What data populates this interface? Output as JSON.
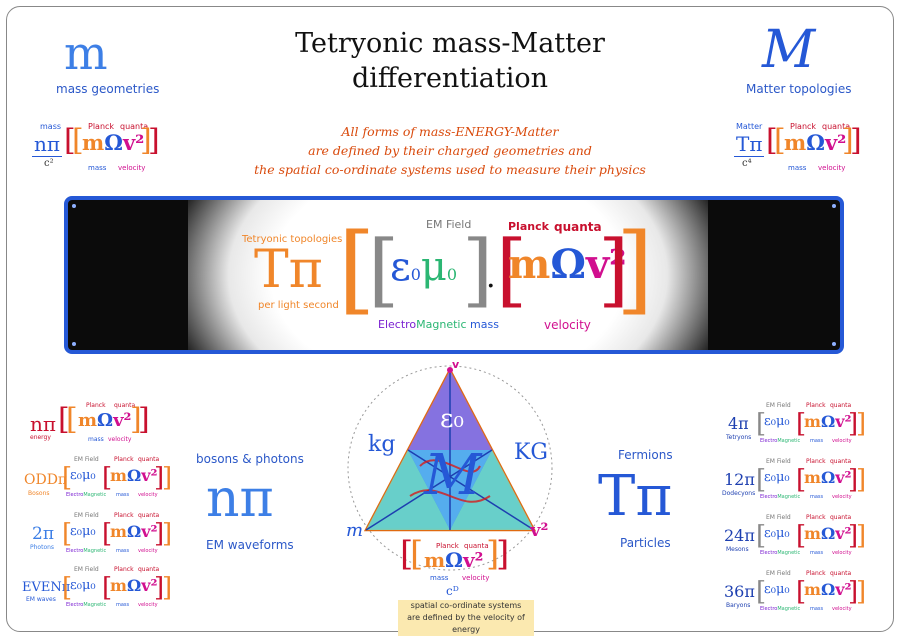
{
  "title_line1": "Tetryonic mass-Matter",
  "title_line2": "differentiation",
  "subtitle": {
    "line1": "All forms of mass-ENERGY-Matter",
    "line2": "are defined by their charged geometries and",
    "line3": "the spatial co-ordinate systems used to measure their physics"
  },
  "left_header": {
    "symbol": "m",
    "label": "mass geometries",
    "formula_top": "mass",
    "formula_num": "nπ",
    "formula_den": "c²",
    "planck": "Planck",
    "quanta": "quanta",
    "mass_lbl": "mass",
    "velocity_lbl": "velocity"
  },
  "right_header": {
    "symbol": "M",
    "label": "Matter topologies",
    "formula_top": "Matter",
    "formula_num": "Tπ",
    "formula_den": "c⁴",
    "planck": "Planck",
    "quanta": "quanta",
    "mass_lbl": "mass",
    "velocity_lbl": "velocity"
  },
  "panel": {
    "topologies": "Tetryonic topologies",
    "per_light_second": "per light second",
    "tpi": "Tπ",
    "em_field": "EM Field",
    "planck": "Planck",
    "quanta": "quanta",
    "em_mass_electro": "Electro",
    "em_mass_magnetic": "Magnetic",
    "em_mass_mass": " mass",
    "velocity": "velocity",
    "eps": "ε₀μ₀",
    "mov": "mΩv²"
  },
  "triangle": {
    "top": "v",
    "left_side": "kg",
    "right_side": "KG",
    "bottom_left": "m",
    "bottom_right": "v²",
    "center": "M",
    "eps": "ε₀",
    "planck": "Planck",
    "quanta": "quanta",
    "mov": "mΩv²",
    "mass_lbl": "mass",
    "velocity_lbl": "velocity",
    "cD": "cᴰ",
    "note_line1": "spatial co-ordinate systems",
    "note_line2": "are defined by the velocity of energy"
  },
  "left_list": [
    {
      "prefix": "nπ",
      "sub": "energy",
      "has_eps": false
    },
    {
      "prefix": "ODDπ",
      "sub": "Bosons",
      "has_eps": true
    },
    {
      "prefix": "2π",
      "sub": "Photons",
      "has_eps": true
    },
    {
      "prefix": "EVENπ",
      "sub": "EM waves",
      "has_eps": true
    }
  ],
  "right_list": [
    {
      "prefix": "4π",
      "sub": "Tetryons"
    },
    {
      "prefix": "12π",
      "sub": "Dodecyons"
    },
    {
      "prefix": "24π",
      "sub": "Mesons"
    },
    {
      "prefix": "36π",
      "sub": "Baryons"
    }
  ],
  "list_common": {
    "em_field": "EM Field",
    "planck": "Planck",
    "quanta": "quanta",
    "eps": "ε₀μ₀",
    "mov": "mΩv²",
    "electro": "Electro",
    "magnetic": "Magnetic",
    "mass": "mass",
    "velocity": "velocity"
  },
  "bosons": {
    "title": "bosons & photons",
    "symbol": "nπ",
    "caption": "EM waveforms"
  },
  "fermions": {
    "title": "Fermions",
    "symbol": "Tπ",
    "caption": "Particles"
  }
}
